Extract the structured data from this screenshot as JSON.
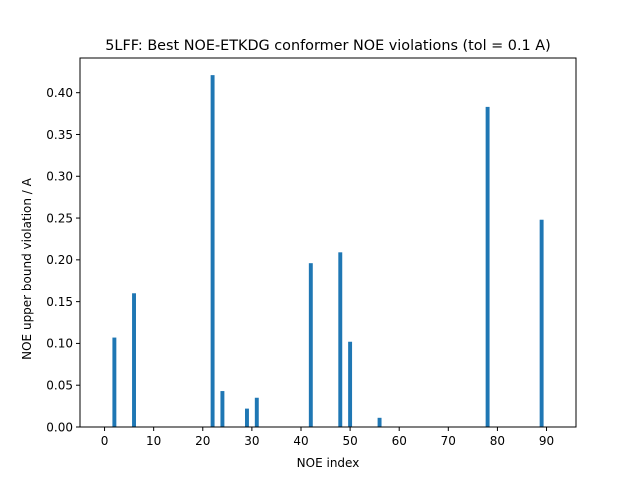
{
  "chart_data": {
    "type": "bar",
    "title": "5LFF: Best NOE-ETKDG conformer NOE violations (tol = 0.1 A)",
    "xlabel": "NOE index",
    "ylabel": "NOE upper bound violation / A",
    "xlim": [
      -5,
      96
    ],
    "ylim": [
      0,
      0.4415
    ],
    "xticks": [
      0,
      10,
      20,
      30,
      40,
      50,
      60,
      70,
      80,
      90
    ],
    "yticks": [
      0.0,
      0.05,
      0.1,
      0.15,
      0.2,
      0.25,
      0.3,
      0.35,
      0.4
    ],
    "x": [
      2,
      6,
      22,
      24,
      29,
      31,
      42,
      48,
      50,
      56,
      78,
      89
    ],
    "values": [
      0.107,
      0.16,
      0.421,
      0.043,
      0.022,
      0.035,
      0.196,
      0.209,
      0.102,
      0.011,
      0.383,
      0.248
    ],
    "bar_width_units": 0.8,
    "bar_color": "#1f77b4",
    "grid": false,
    "legend": "none"
  }
}
